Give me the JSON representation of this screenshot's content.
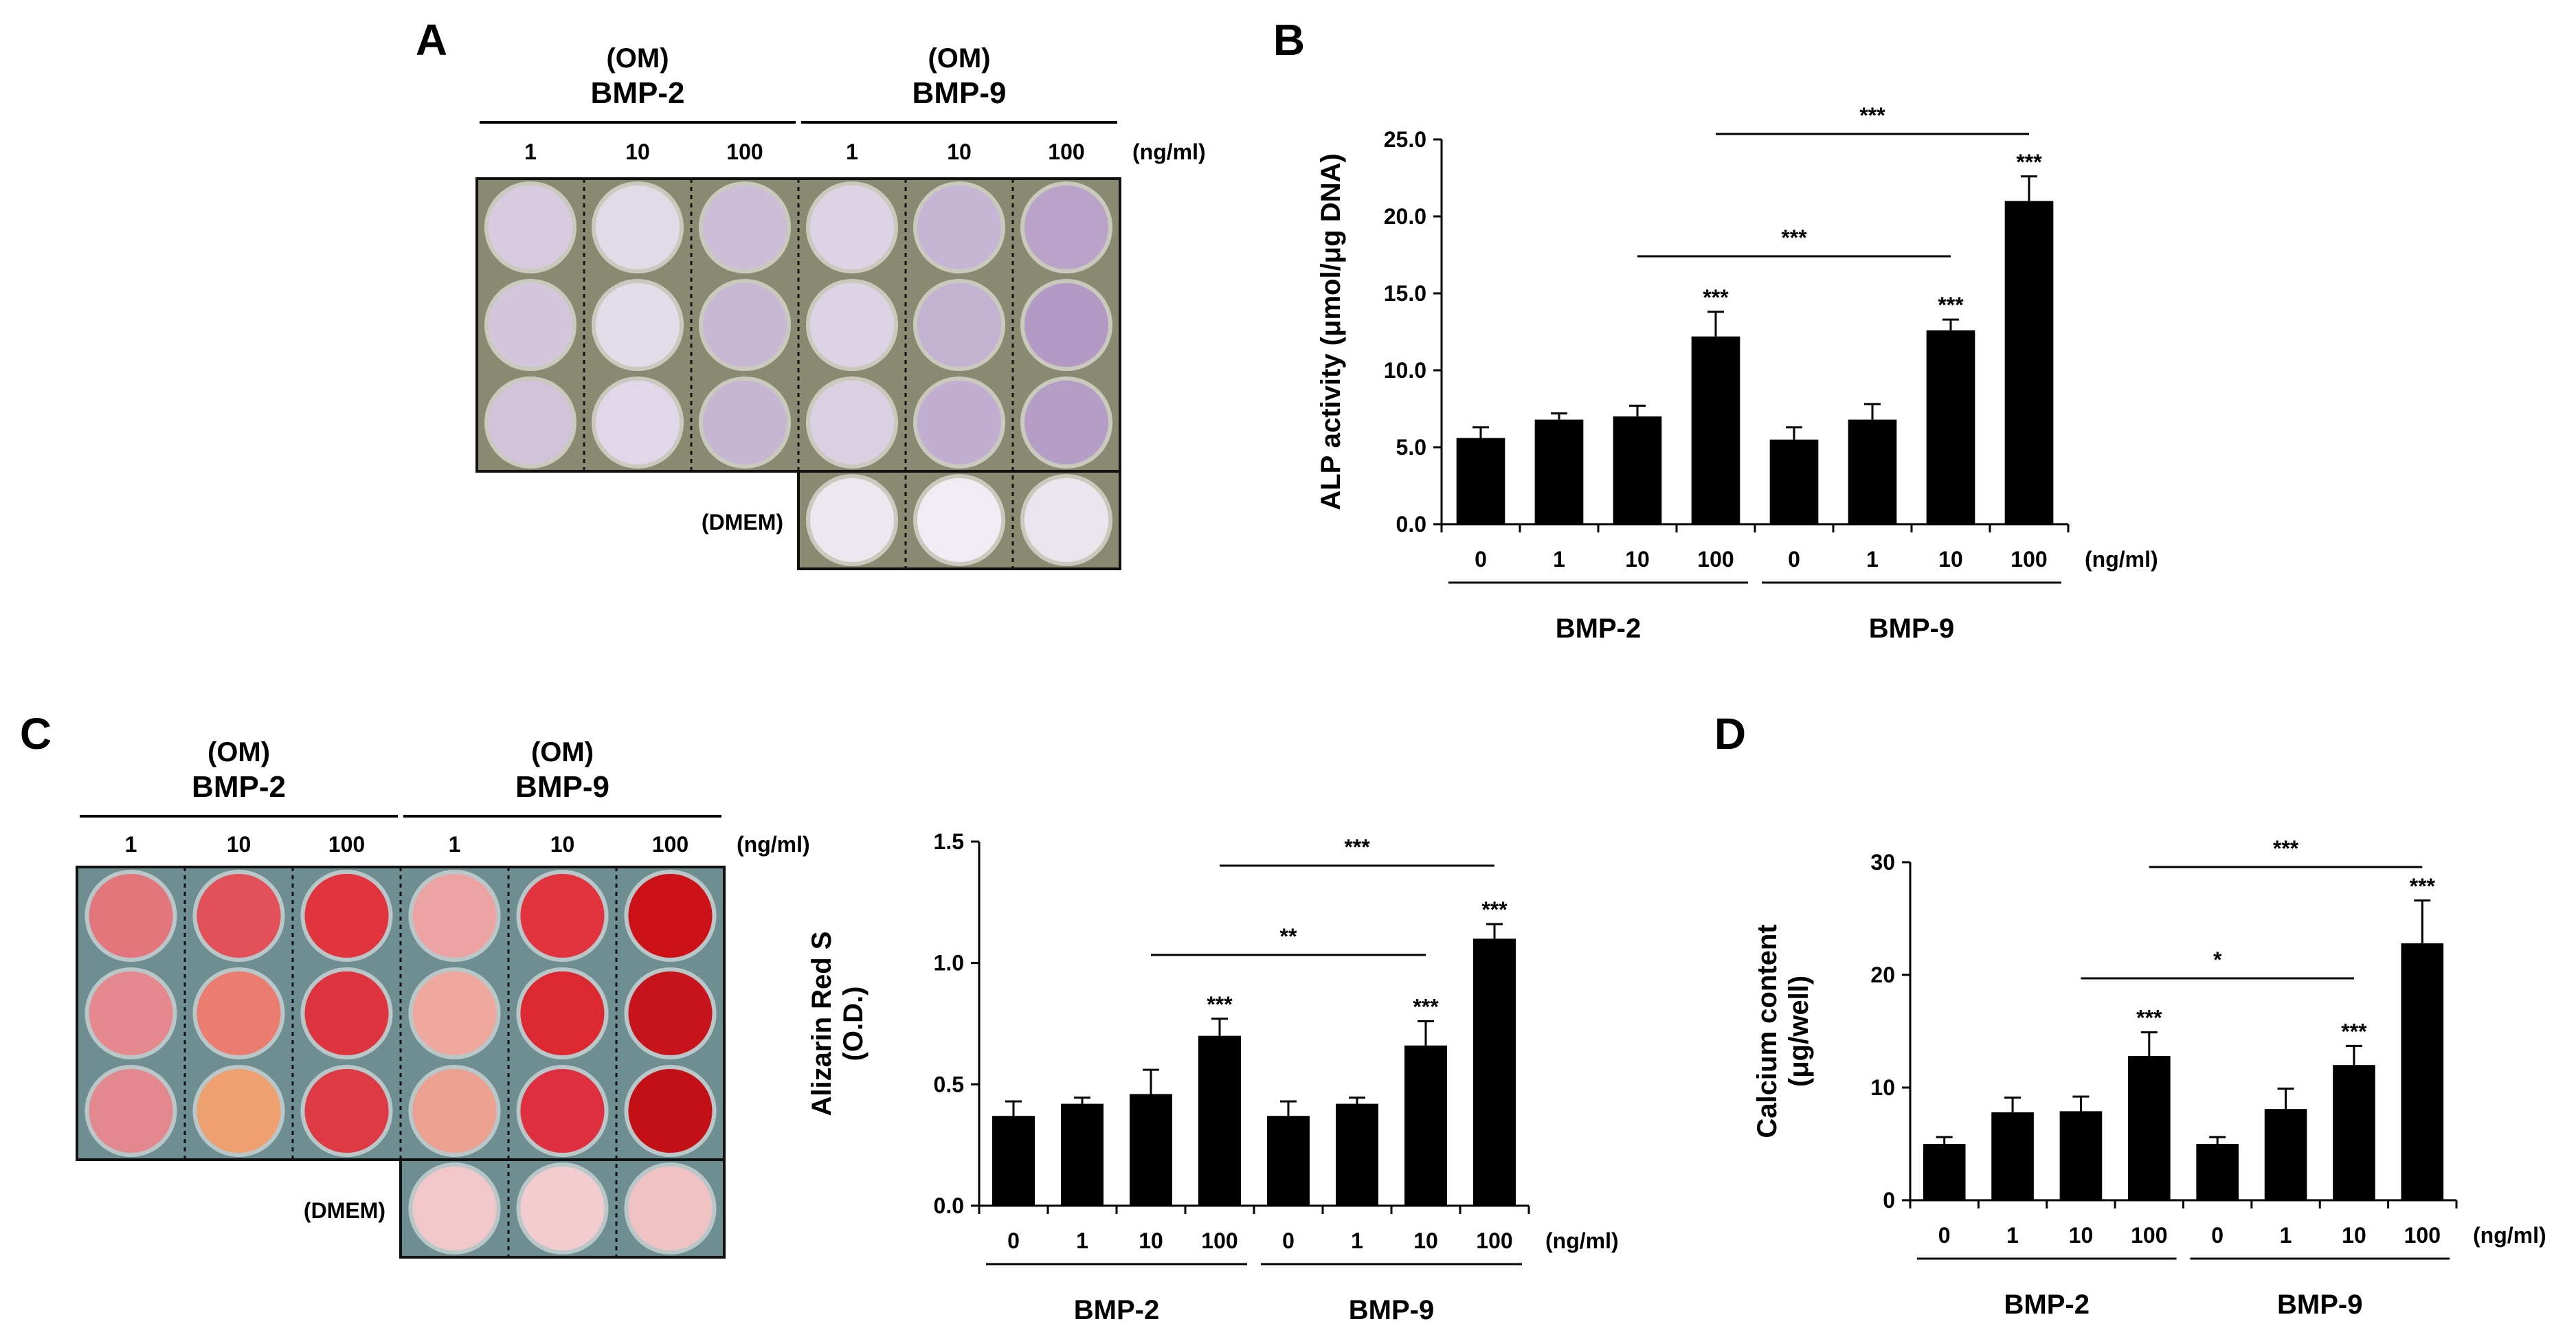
{
  "panel_letters": {
    "a": "A",
    "b": "B",
    "c": "C",
    "d": "D"
  },
  "plates": {
    "a": {
      "om_tag": "(OM)",
      "groups": [
        "BMP-2",
        "BMP-9"
      ],
      "doses": [
        "1",
        "10",
        "100",
        "1",
        "10",
        "100"
      ],
      "unit": "(ng/ml)",
      "dmem": "(DMEM)",
      "well_colors": [
        [
          "#d8cbe0",
          "#e1dbe8",
          "#cdbdd6",
          "#ddd3e5",
          "#c7b5d5",
          "#b9a3c8"
        ],
        [
          "#d4c6dc",
          "#e3ddea",
          "#c8b8d4",
          "#dcd4e4",
          "#c4b2d2",
          "#b29ac4"
        ],
        [
          "#d2c2da",
          "#e0d8e8",
          "#c6b6d2",
          "#dad0e2",
          "#c2aed0",
          "#b49ec6"
        ]
      ],
      "dmem_colors": [
        "#ece8f0",
        "#f0ecf3",
        "#eae6ee"
      ]
    },
    "c": {
      "om_tag": "(OM)",
      "groups": [
        "BMP-2",
        "BMP-9"
      ],
      "doses": [
        "1",
        "10",
        "100",
        "1",
        "10",
        "100"
      ],
      "unit": "(ng/ml)",
      "dmem": "(DMEM)",
      "well_colors": [
        [
          "#e3767c",
          "#e2505a",
          "#e0343e",
          "#eca3a3",
          "#e1343f",
          "#cc1218"
        ],
        [
          "#e6898f",
          "#ea7d70",
          "#de3440",
          "#eea89e",
          "#dc2830",
          "#c8141c"
        ],
        [
          "#e48890",
          "#eea070",
          "#dd3a45",
          "#eba090",
          "#de3040",
          "#c31016"
        ]
      ],
      "dmem_colors": [
        "#f2c7c9",
        "#f2cccf",
        "#f0c2c4"
      ]
    }
  },
  "chart_data": [
    {
      "id": "B",
      "type": "bar",
      "ylabel": "ALP activity (μmol/μg DNA)",
      "categories": [
        "0",
        "1",
        "10",
        "100",
        "0",
        "1",
        "10",
        "100"
      ],
      "groups": [
        "BMP-2",
        "BMP-9"
      ],
      "unit": "(ng/ml)",
      "values": [
        5.6,
        6.8,
        7.0,
        12.2,
        5.5,
        6.8,
        12.6,
        21.0
      ],
      "errors": [
        0.7,
        0.4,
        0.7,
        1.6,
        0.8,
        1.0,
        0.7,
        1.6
      ],
      "ylim": [
        0,
        25
      ],
      "yticks": [
        "0.0",
        "5.0",
        "10.0",
        "15.0",
        "20.0",
        "25.0"
      ],
      "ytick_values": [
        0,
        5,
        10,
        15,
        20,
        25
      ],
      "bar_stars": [
        "",
        "",
        "",
        "***",
        "",
        "",
        "***",
        "***"
      ],
      "comparisons": [
        {
          "from": 2,
          "to": 6,
          "label": "***"
        },
        {
          "from": 3,
          "to": 7,
          "label": "***"
        }
      ]
    },
    {
      "id": "C",
      "type": "bar",
      "ylabel": "Alizarin Red S\n(O.D.)",
      "categories": [
        "0",
        "1",
        "10",
        "100",
        "0",
        "1",
        "10",
        "100"
      ],
      "groups": [
        "BMP-2",
        "BMP-9"
      ],
      "unit": "(ng/ml)",
      "values": [
        0.37,
        0.42,
        0.46,
        0.7,
        0.37,
        0.42,
        0.66,
        1.1
      ],
      "errors": [
        0.06,
        0.025,
        0.1,
        0.07,
        0.06,
        0.025,
        0.1,
        0.06
      ],
      "ylim": [
        0,
        1.5
      ],
      "yticks": [
        "0.0",
        "0.5",
        "1.0",
        "1.5"
      ],
      "ytick_values": [
        0,
        0.5,
        1.0,
        1.5
      ],
      "bar_stars": [
        "",
        "",
        "",
        "***",
        "",
        "",
        "***",
        "***"
      ],
      "comparisons": [
        {
          "from": 2,
          "to": 6,
          "label": "**"
        },
        {
          "from": 3,
          "to": 7,
          "label": "***"
        }
      ]
    },
    {
      "id": "D",
      "type": "bar",
      "ylabel": "Calcium content\n(μg/well)",
      "categories": [
        "0",
        "1",
        "10",
        "100",
        "0",
        "1",
        "10",
        "100"
      ],
      "groups": [
        "BMP-2",
        "BMP-9"
      ],
      "unit": "(ng/ml)",
      "values": [
        5.0,
        7.8,
        7.9,
        12.8,
        5.0,
        8.1,
        12.0,
        22.8
      ],
      "errors": [
        0.6,
        1.3,
        1.3,
        2.1,
        0.6,
        1.8,
        1.7,
        3.8
      ],
      "ylim": [
        0,
        30
      ],
      "yticks": [
        "0",
        "10",
        "20",
        "30"
      ],
      "ytick_values": [
        0,
        10,
        20,
        30
      ],
      "bar_stars": [
        "",
        "",
        "",
        "***",
        "",
        "",
        "***",
        "***"
      ],
      "comparisons": [
        {
          "from": 2,
          "to": 6,
          "label": "*"
        },
        {
          "from": 3,
          "to": 7,
          "label": "***"
        }
      ]
    }
  ]
}
